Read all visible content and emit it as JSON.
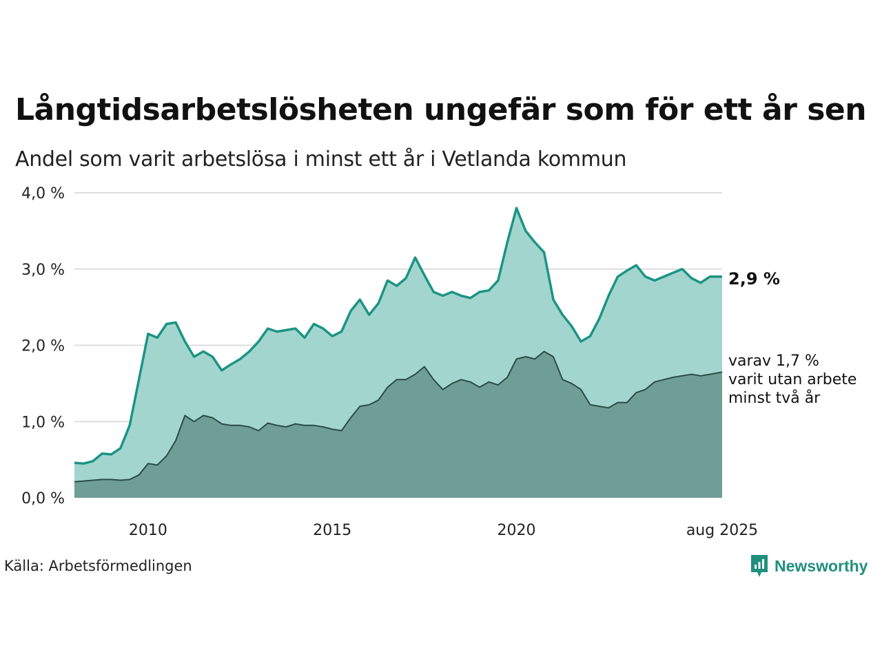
{
  "title": "Långtidsarbetslösheten ungefär som för ett år sen",
  "subtitle": "Andel som varit arbetslösa i minst ett år i Vetlanda kommun",
  "source": "Källa: Arbetsförmedlingen",
  "brand": "Newsworthy",
  "colors": {
    "area_one_year": "#a3d5cf",
    "line_one_year": "#1b9483",
    "area_two_year": "#6f9e97",
    "line_two_year": "#2a4b46",
    "grid": "#dddddd"
  },
  "end_label": "2,9 %",
  "sub_label_lines": [
    "varav 1,7 %",
    "varit utan arbete",
    "minst två år"
  ],
  "chart_data": {
    "type": "area",
    "y_tick_labels": [
      "0,0 %",
      "1,0 %",
      "2,0 %",
      "3,0 %",
      "4,0 %"
    ],
    "y_ticks": [
      0,
      1,
      2,
      3,
      4
    ],
    "ylim": [
      0,
      4
    ],
    "x_tick_labels": [
      "2010",
      "2015",
      "2020",
      "aug 2025"
    ],
    "x_ticks": [
      2010.0,
      2015.0,
      2020.0,
      2025.583
    ],
    "xlim": [
      2008.0,
      2025.583
    ],
    "grid": true,
    "series": [
      {
        "name": "varit arbetslösa i minst ett år",
        "x": [
          2008.0,
          2008.25,
          2008.5,
          2008.75,
          2009.0,
          2009.25,
          2009.5,
          2009.75,
          2010.0,
          2010.25,
          2010.5,
          2010.75,
          2011.0,
          2011.25,
          2011.5,
          2011.75,
          2012.0,
          2012.25,
          2012.5,
          2012.75,
          2013.0,
          2013.25,
          2013.5,
          2013.75,
          2014.0,
          2014.25,
          2014.5,
          2014.75,
          2015.0,
          2015.25,
          2015.5,
          2015.75,
          2016.0,
          2016.25,
          2016.5,
          2016.75,
          2017.0,
          2017.25,
          2017.5,
          2017.75,
          2018.0,
          2018.25,
          2018.5,
          2018.75,
          2019.0,
          2019.25,
          2019.5,
          2019.75,
          2020.0,
          2020.25,
          2020.5,
          2020.75,
          2021.0,
          2021.25,
          2021.5,
          2021.75,
          2022.0,
          2022.25,
          2022.5,
          2022.75,
          2023.0,
          2023.25,
          2023.5,
          2023.75,
          2024.0,
          2024.25,
          2024.5,
          2024.75,
          2025.0,
          2025.25,
          2025.583
        ],
        "values": [
          0.46,
          0.45,
          0.48,
          0.58,
          0.57,
          0.65,
          0.95,
          1.55,
          2.15,
          2.1,
          2.28,
          2.3,
          2.05,
          1.85,
          1.92,
          1.85,
          1.67,
          1.75,
          1.82,
          1.92,
          2.05,
          2.22,
          2.18,
          2.2,
          2.22,
          2.1,
          2.28,
          2.22,
          2.12,
          2.18,
          2.45,
          2.6,
          2.4,
          2.55,
          2.85,
          2.78,
          2.88,
          3.15,
          2.92,
          2.7,
          2.65,
          2.7,
          2.65,
          2.62,
          2.7,
          2.72,
          2.85,
          3.35,
          3.8,
          3.5,
          3.35,
          3.22,
          2.6,
          2.4,
          2.25,
          2.05,
          2.12,
          2.35,
          2.65,
          2.9,
          2.98,
          3.05,
          2.9,
          2.85,
          2.9,
          2.95,
          3.0,
          2.88,
          2.82,
          2.9,
          2.9
        ]
      },
      {
        "name": "varit utan arbete minst två år",
        "x": [
          2008.0,
          2008.25,
          2008.5,
          2008.75,
          2009.0,
          2009.25,
          2009.5,
          2009.75,
          2010.0,
          2010.25,
          2010.5,
          2010.75,
          2011.0,
          2011.25,
          2011.5,
          2011.75,
          2012.0,
          2012.25,
          2012.5,
          2012.75,
          2013.0,
          2013.25,
          2013.5,
          2013.75,
          2014.0,
          2014.25,
          2014.5,
          2014.75,
          2015.0,
          2015.25,
          2015.5,
          2015.75,
          2016.0,
          2016.25,
          2016.5,
          2016.75,
          2017.0,
          2017.25,
          2017.5,
          2017.75,
          2018.0,
          2018.25,
          2018.5,
          2018.75,
          2019.0,
          2019.25,
          2019.5,
          2019.75,
          2020.0,
          2020.25,
          2020.5,
          2020.75,
          2021.0,
          2021.25,
          2021.5,
          2021.75,
          2022.0,
          2022.25,
          2022.5,
          2022.75,
          2023.0,
          2023.25,
          2023.5,
          2023.75,
          2024.0,
          2024.25,
          2024.5,
          2024.75,
          2025.0,
          2025.25,
          2025.583
        ],
        "values": [
          0.21,
          0.22,
          0.23,
          0.24,
          0.24,
          0.23,
          0.24,
          0.3,
          0.45,
          0.43,
          0.55,
          0.75,
          1.08,
          1.0,
          1.08,
          1.05,
          0.97,
          0.95,
          0.95,
          0.93,
          0.88,
          0.98,
          0.95,
          0.93,
          0.97,
          0.95,
          0.95,
          0.93,
          0.9,
          0.88,
          1.05,
          1.2,
          1.22,
          1.28,
          1.45,
          1.55,
          1.55,
          1.62,
          1.72,
          1.55,
          1.42,
          1.5,
          1.55,
          1.52,
          1.45,
          1.52,
          1.48,
          1.58,
          1.82,
          1.85,
          1.82,
          1.92,
          1.85,
          1.55,
          1.5,
          1.42,
          1.22,
          1.2,
          1.18,
          1.25,
          1.25,
          1.38,
          1.42,
          1.52,
          1.55,
          1.58,
          1.6,
          1.62,
          1.6,
          1.62,
          1.65
        ]
      }
    ]
  }
}
